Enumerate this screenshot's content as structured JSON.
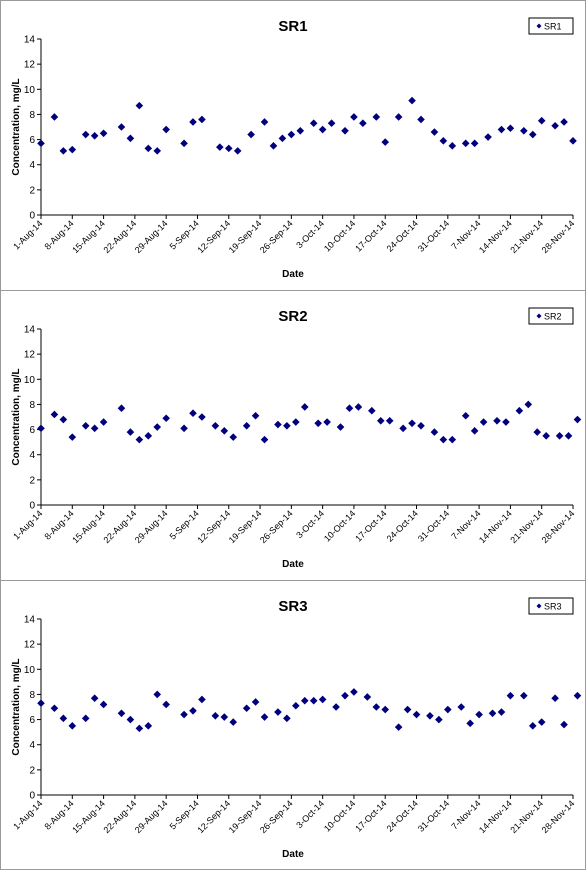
{
  "chart_data": [
    {
      "type": "scatter",
      "title": "SR1",
      "xlabel": "Date",
      "ylabel": "Concentration, mg/L",
      "xlim": [
        "1-Aug-14",
        "28-Nov-14"
      ],
      "ylim": [
        0,
        14
      ],
      "yticks": [
        0,
        2,
        4,
        6,
        8,
        10,
        12,
        14
      ],
      "xticks": [
        "1-Aug-14",
        "8-Aug-14",
        "15-Aug-14",
        "22-Aug-14",
        "29-Aug-14",
        "5-Sep-14",
        "12-Sep-14",
        "19-Sep-14",
        "26-Sep-14",
        "3-Oct-14",
        "10-Oct-14",
        "17-Oct-14",
        "24-Oct-14",
        "31-Oct-14",
        "7-Nov-14",
        "14-Nov-14",
        "21-Nov-14",
        "28-Nov-14"
      ],
      "grid": false,
      "legend": "top-right",
      "marker_color": "#00007f",
      "series": [
        {
          "name": "SR1",
          "x": [
            "1-Aug-14",
            "4-Aug-14",
            "6-Aug-14",
            "8-Aug-14",
            "11-Aug-14",
            "13-Aug-14",
            "15-Aug-14",
            "19-Aug-14",
            "21-Aug-14",
            "23-Aug-14",
            "25-Aug-14",
            "27-Aug-14",
            "29-Aug-14",
            "2-Sep-14",
            "4-Sep-14",
            "6-Sep-14",
            "10-Sep-14",
            "12-Sep-14",
            "14-Sep-14",
            "17-Sep-14",
            "20-Sep-14",
            "22-Sep-14",
            "24-Sep-14",
            "26-Sep-14",
            "28-Sep-14",
            "1-Oct-14",
            "3-Oct-14",
            "5-Oct-14",
            "8-Oct-14",
            "10-Oct-14",
            "12-Oct-14",
            "15-Oct-14",
            "17-Oct-14",
            "20-Oct-14",
            "23-Oct-14",
            "25-Oct-14",
            "28-Oct-14",
            "30-Oct-14",
            "1-Nov-14",
            "4-Nov-14",
            "6-Nov-14",
            "9-Nov-14",
            "12-Nov-14",
            "14-Nov-14",
            "17-Nov-14",
            "19-Nov-14",
            "21-Nov-14",
            "24-Nov-14",
            "26-Nov-14",
            "28-Nov-14"
          ],
          "y": [
            5.7,
            7.8,
            5.1,
            5.2,
            6.4,
            6.3,
            6.5,
            7.0,
            6.1,
            8.7,
            5.3,
            5.1,
            6.8,
            5.7,
            7.4,
            7.6,
            5.4,
            5.3,
            5.1,
            6.4,
            7.4,
            5.5,
            6.1,
            6.4,
            6.7,
            7.3,
            6.8,
            7.3,
            6.7,
            7.8,
            7.3,
            7.8,
            5.8,
            7.8,
            9.1,
            7.6,
            6.6,
            5.9,
            5.5,
            5.7,
            5.7,
            6.2,
            6.8,
            6.9,
            6.7,
            6.4,
            7.5,
            7.1,
            7.4,
            5.9
          ]
        }
      ]
    },
    {
      "type": "scatter",
      "title": "SR2",
      "xlabel": "Date",
      "ylabel": "Concentration, mg/L",
      "xlim": [
        "1-Aug-14",
        "28-Nov-14"
      ],
      "ylim": [
        0,
        14
      ],
      "yticks": [
        0,
        2,
        4,
        6,
        8,
        10,
        12,
        14
      ],
      "xticks": [
        "1-Aug-14",
        "8-Aug-14",
        "15-Aug-14",
        "22-Aug-14",
        "29-Aug-14",
        "5-Sep-14",
        "12-Sep-14",
        "19-Sep-14",
        "26-Sep-14",
        "3-Oct-14",
        "10-Oct-14",
        "17-Oct-14",
        "24-Oct-14",
        "31-Oct-14",
        "7-Nov-14",
        "14-Nov-14",
        "21-Nov-14",
        "28-Nov-14"
      ],
      "grid": false,
      "legend": "top-right",
      "marker_color": "#00007f",
      "series": [
        {
          "name": "SR2",
          "x": [
            "1-Aug-14",
            "4-Aug-14",
            "6-Aug-14",
            "8-Aug-14",
            "11-Aug-14",
            "13-Aug-14",
            "15-Aug-14",
            "19-Aug-14",
            "21-Aug-14",
            "23-Aug-14",
            "25-Aug-14",
            "27-Aug-14",
            "29-Aug-14",
            "2-Sep-14",
            "4-Sep-14",
            "6-Sep-14",
            "9-Sep-14",
            "11-Sep-14",
            "13-Sep-14",
            "16-Sep-14",
            "18-Sep-14",
            "20-Sep-14",
            "23-Sep-14",
            "25-Sep-14",
            "27-Sep-14",
            "29-Sep-14",
            "2-Oct-14",
            "4-Oct-14",
            "7-Oct-14",
            "9-Oct-14",
            "11-Oct-14",
            "14-Oct-14",
            "16-Oct-14",
            "18-Oct-14",
            "21-Oct-14",
            "23-Oct-14",
            "25-Oct-14",
            "28-Oct-14",
            "30-Oct-14",
            "1-Nov-14",
            "4-Nov-14",
            "6-Nov-14",
            "8-Nov-14",
            "11-Nov-14",
            "13-Nov-14",
            "16-Nov-14",
            "18-Nov-14",
            "20-Nov-14",
            "22-Nov-14",
            "25-Nov-14",
            "27-Nov-14",
            "29-Nov-14"
          ],
          "y": [
            6.1,
            7.2,
            6.8,
            5.4,
            6.3,
            6.1,
            6.6,
            7.7,
            5.8,
            5.2,
            5.5,
            6.2,
            6.9,
            6.1,
            7.3,
            7.0,
            6.3,
            5.9,
            5.4,
            6.3,
            7.1,
            5.2,
            6.4,
            6.3,
            6.6,
            7.8,
            6.5,
            6.6,
            6.2,
            7.7,
            7.8,
            7.5,
            6.7,
            6.7,
            6.1,
            6.5,
            6.3,
            5.8,
            5.2,
            5.2,
            7.1,
            5.9,
            6.6,
            6.7,
            6.6,
            7.5,
            8.0,
            5.8,
            5.5,
            5.5,
            5.5,
            6.8
          ]
        }
      ]
    },
    {
      "type": "scatter",
      "title": "SR3",
      "xlabel": "Date",
      "ylabel": "Concentration, mg/L",
      "xlim": [
        "1-Aug-14",
        "28-Nov-14"
      ],
      "ylim": [
        0,
        14
      ],
      "yticks": [
        0,
        2,
        4,
        6,
        8,
        10,
        12,
        14
      ],
      "xticks": [
        "1-Aug-14",
        "8-Aug-14",
        "15-Aug-14",
        "22-Aug-14",
        "29-Aug-14",
        "5-Sep-14",
        "12-Sep-14",
        "19-Sep-14",
        "26-Sep-14",
        "3-Oct-14",
        "10-Oct-14",
        "17-Oct-14",
        "24-Oct-14",
        "31-Oct-14",
        "7-Nov-14",
        "14-Nov-14",
        "21-Nov-14",
        "28-Nov-14"
      ],
      "grid": false,
      "legend": "top-right",
      "marker_color": "#00007f",
      "series": [
        {
          "name": "SR3",
          "x": [
            "1-Aug-14",
            "4-Aug-14",
            "6-Aug-14",
            "8-Aug-14",
            "11-Aug-14",
            "13-Aug-14",
            "15-Aug-14",
            "19-Aug-14",
            "21-Aug-14",
            "23-Aug-14",
            "25-Aug-14",
            "27-Aug-14",
            "29-Aug-14",
            "2-Sep-14",
            "4-Sep-14",
            "6-Sep-14",
            "9-Sep-14",
            "11-Sep-14",
            "13-Sep-14",
            "16-Sep-14",
            "18-Sep-14",
            "20-Sep-14",
            "23-Sep-14",
            "25-Sep-14",
            "27-Sep-14",
            "29-Sep-14",
            "1-Oct-14",
            "3-Oct-14",
            "6-Oct-14",
            "8-Oct-14",
            "10-Oct-14",
            "13-Oct-14",
            "15-Oct-14",
            "17-Oct-14",
            "20-Oct-14",
            "22-Oct-14",
            "24-Oct-14",
            "27-Oct-14",
            "29-Oct-14",
            "31-Oct-14",
            "3-Nov-14",
            "5-Nov-14",
            "7-Nov-14",
            "10-Nov-14",
            "12-Nov-14",
            "14-Nov-14",
            "17-Nov-14",
            "19-Nov-14",
            "21-Nov-14",
            "24-Nov-14",
            "26-Nov-14",
            "29-Nov-14"
          ],
          "y": [
            7.3,
            6.9,
            6.1,
            5.5,
            6.1,
            7.7,
            7.2,
            6.5,
            6.0,
            5.3,
            5.5,
            8.0,
            7.2,
            6.4,
            6.7,
            7.6,
            6.3,
            6.2,
            5.8,
            6.9,
            7.4,
            6.2,
            6.6,
            6.1,
            7.1,
            7.5,
            7.5,
            7.6,
            7.0,
            7.9,
            8.2,
            7.8,
            7.0,
            6.8,
            5.4,
            6.8,
            6.4,
            6.3,
            6.0,
            6.8,
            7.0,
            5.7,
            6.4,
            6.5,
            6.6,
            7.9,
            7.9,
            5.5,
            5.8,
            7.7,
            5.6,
            7.9
          ]
        }
      ]
    }
  ]
}
